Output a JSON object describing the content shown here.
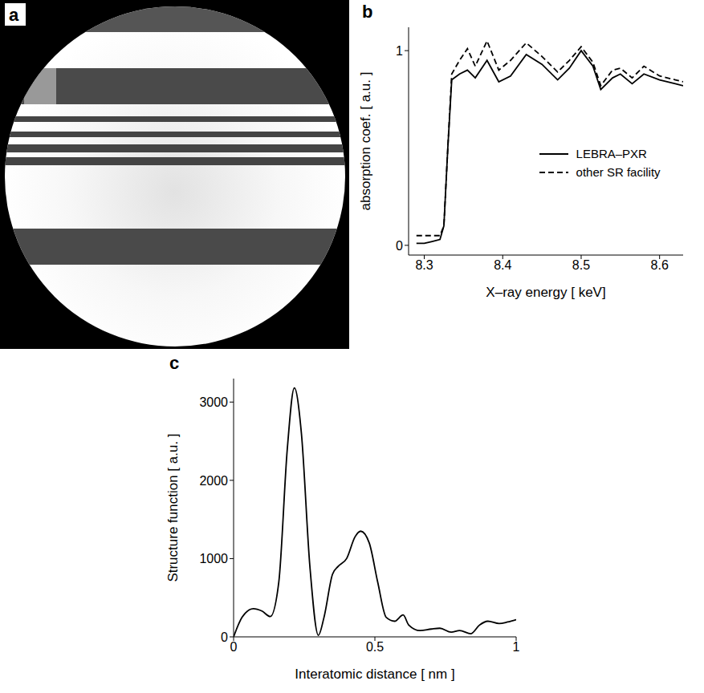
{
  "chart_data": [
    {
      "label": "a",
      "type": "image"
    },
    {
      "label": "b",
      "type": "line",
      "x_label": "X–ray energy [ keV]",
      "y_label": "absorption coef. [ a.u. ]",
      "x": [
        8.29,
        8.3,
        8.31,
        8.32,
        8.325,
        8.33,
        8.335,
        8.345,
        8.355,
        8.365,
        8.38,
        8.395,
        8.41,
        8.43,
        8.45,
        8.47,
        8.485,
        8.5,
        8.515,
        8.525,
        8.54,
        8.55,
        8.565,
        8.58,
        8.6,
        8.62,
        8.63
      ],
      "series": [
        {
          "name": "LEBRA–PXR",
          "color": "#000000",
          "line_style": "solid",
          "values": [
            0.01,
            0.01,
            0.02,
            0.03,
            0.1,
            0.5,
            0.85,
            0.88,
            0.9,
            0.86,
            0.95,
            0.84,
            0.87,
            0.98,
            0.93,
            0.85,
            0.91,
            1.0,
            0.92,
            0.8,
            0.86,
            0.88,
            0.83,
            0.88,
            0.85,
            0.83,
            0.82
          ]
        },
        {
          "name": "other SR facility",
          "color": "#000000",
          "line_style": "dashed",
          "values": [
            0.05,
            0.05,
            0.05,
            0.05,
            0.1,
            0.5,
            0.88,
            0.95,
            1.01,
            0.92,
            1.05,
            0.9,
            0.95,
            1.04,
            0.97,
            0.89,
            0.95,
            1.02,
            0.94,
            0.82,
            0.9,
            0.91,
            0.86,
            0.92,
            0.87,
            0.85,
            0.84
          ]
        }
      ],
      "xlim": [
        8.28,
        8.63
      ],
      "xticks": [
        8.3,
        8.4,
        8.5,
        8.6
      ],
      "ylim": [
        -0.05,
        1.12
      ],
      "yticks": [
        0,
        1
      ],
      "legend": "right"
    },
    {
      "label": "c",
      "type": "line",
      "x_label": "Interatomic distance [ nm ]",
      "y_label": "Structure function [ a.u. ]",
      "x": [
        0,
        0.03,
        0.07,
        0.1,
        0.13,
        0.16,
        0.19,
        0.215,
        0.24,
        0.27,
        0.3,
        0.32,
        0.35,
        0.37,
        0.4,
        0.43,
        0.45,
        0.48,
        0.51,
        0.54,
        0.57,
        0.6,
        0.62,
        0.66,
        0.7,
        0.73,
        0.77,
        0.8,
        0.84,
        0.87,
        0.9,
        0.94,
        0.97,
        1.0
      ],
      "series": [
        {
          "name": "Structure function",
          "color": "#000000",
          "line_style": "solid",
          "values": [
            0,
            250,
            360,
            330,
            260,
            700,
            2400,
            3180,
            2600,
            900,
            20,
            250,
            800,
            900,
            1000,
            1280,
            1350,
            1200,
            700,
            250,
            200,
            280,
            150,
            80,
            100,
            110,
            60,
            80,
            40,
            150,
            200,
            170,
            190,
            220
          ]
        }
      ],
      "xlim": [
        0,
        1
      ],
      "xticks": [
        0,
        0.5,
        1
      ],
      "ylim": [
        0,
        3300
      ],
      "yticks": [
        0,
        1000,
        2000,
        3000
      ]
    }
  ]
}
